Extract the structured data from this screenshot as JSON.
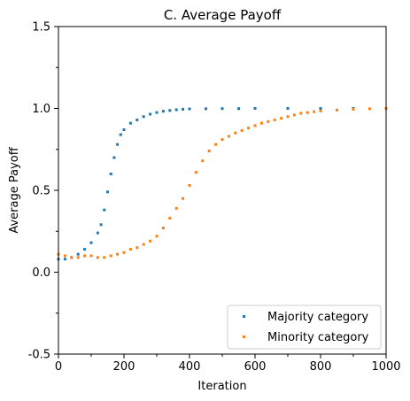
{
  "chart_data": {
    "type": "scatter",
    "title": "C. Average Payoff",
    "xlabel": "Iteration",
    "ylabel": "Average Payoff",
    "xlim": [
      0,
      1000
    ],
    "ylim": [
      -0.5,
      1.5
    ],
    "x_major_ticks": [
      0,
      200,
      400,
      600,
      800,
      1000
    ],
    "x_minor_ticks": [
      100,
      300,
      500,
      700,
      900
    ],
    "x_tick_labels": [
      "0",
      "200",
      "400",
      "600",
      "800",
      "1000"
    ],
    "y_major_ticks": [
      -0.5,
      0.0,
      0.5,
      1.0,
      1.5
    ],
    "y_minor_ticks": [
      -0.25,
      0.25,
      0.75,
      1.25
    ],
    "y_tick_labels": [
      "-0.5",
      "0.0",
      "0.5",
      "1.0",
      "1.5"
    ],
    "grid": false,
    "legend_position": "lower right",
    "series": [
      {
        "name": "Majority category",
        "color": "#1f77b4",
        "x": [
          0,
          20,
          40,
          60,
          80,
          100,
          120,
          130,
          140,
          150,
          160,
          170,
          180,
          190,
          200,
          220,
          240,
          260,
          280,
          300,
          320,
          340,
          360,
          380,
          400,
          450,
          500,
          550,
          600,
          700,
          800,
          900,
          1000
        ],
        "values": [
          0.08,
          0.08,
          0.09,
          0.11,
          0.14,
          0.18,
          0.24,
          0.29,
          0.38,
          0.49,
          0.6,
          0.7,
          0.78,
          0.84,
          0.87,
          0.91,
          0.93,
          0.95,
          0.965,
          0.975,
          0.983,
          0.988,
          0.992,
          0.995,
          0.997,
          0.998,
          0.999,
          0.999,
          1.0,
          1.0,
          1.0,
          1.0,
          1.0
        ]
      },
      {
        "name": "Minority category",
        "color": "#ff7f0e",
        "x": [
          0,
          20,
          40,
          60,
          80,
          100,
          120,
          140,
          160,
          180,
          200,
          220,
          240,
          260,
          280,
          300,
          320,
          340,
          360,
          380,
          400,
          420,
          440,
          460,
          480,
          500,
          520,
          540,
          560,
          580,
          600,
          620,
          640,
          660,
          680,
          700,
          720,
          740,
          760,
          780,
          800,
          850,
          900,
          950,
          1000
        ],
        "values": [
          0.11,
          0.1,
          0.09,
          0.09,
          0.1,
          0.1,
          0.09,
          0.09,
          0.1,
          0.11,
          0.12,
          0.14,
          0.15,
          0.17,
          0.19,
          0.22,
          0.27,
          0.33,
          0.39,
          0.45,
          0.53,
          0.61,
          0.68,
          0.74,
          0.78,
          0.81,
          0.83,
          0.85,
          0.865,
          0.88,
          0.895,
          0.91,
          0.92,
          0.93,
          0.94,
          0.95,
          0.96,
          0.97,
          0.975,
          0.98,
          0.985,
          0.99,
          0.995,
          0.998,
          1.0
        ]
      }
    ]
  }
}
